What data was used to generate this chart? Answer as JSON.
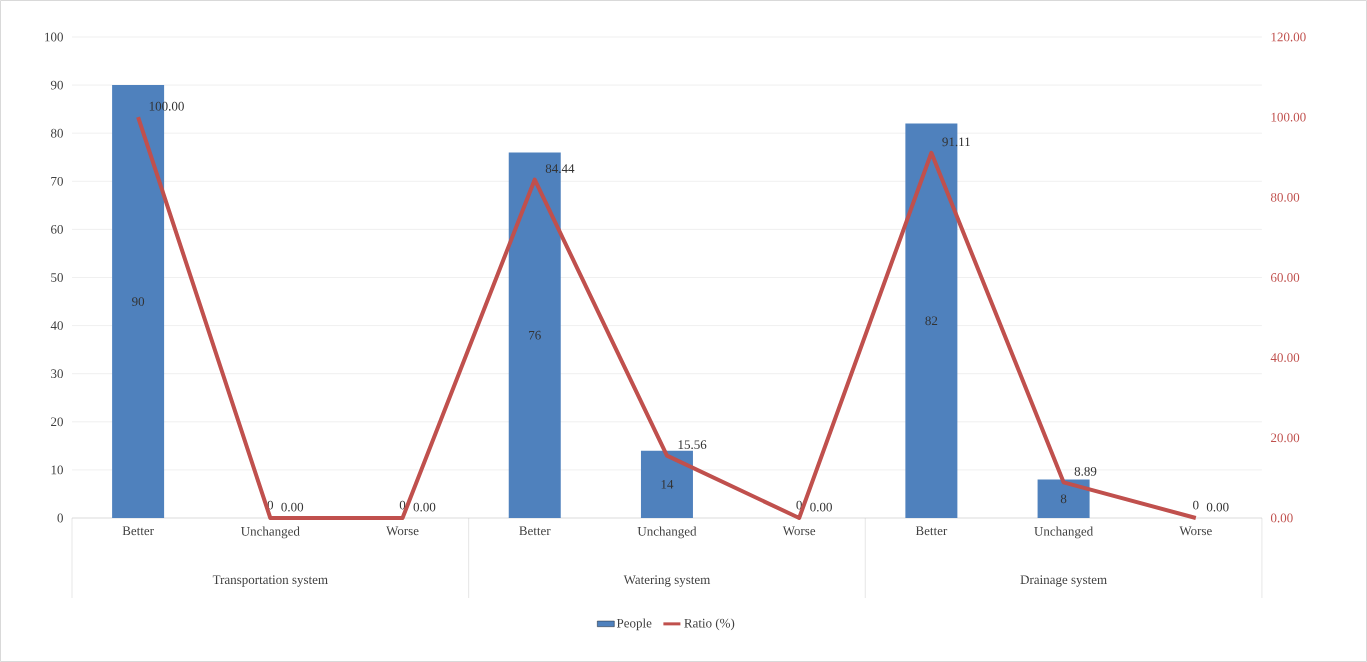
{
  "chart_data": {
    "type": "bar",
    "categories": [
      "Better",
      "Unchanged",
      "Worse",
      "Better",
      "Unchanged",
      "Worse",
      "Better",
      "Unchanged",
      "Worse"
    ],
    "annotations": [
      "Transportation system",
      "Watering system",
      "Drainage system"
    ],
    "series": [
      {
        "name": "People",
        "color": "#4f81bd",
        "values": [
          90,
          0,
          0,
          76,
          14,
          0,
          82,
          8,
          0
        ],
        "value_labels": [
          "90",
          "0",
          "0",
          "76",
          "14",
          "0",
          "82",
          "8",
          "0"
        ]
      },
      {
        "name": "Ratio (%)",
        "type": "line",
        "axis": "y2",
        "color": "#c0504d",
        "values": [
          100.0,
          0.0,
          0.0,
          84.44,
          15.56,
          0.0,
          91.11,
          8.89,
          0.0
        ],
        "value_labels": [
          "100.00",
          "0.00",
          "0.00",
          "84.44",
          "15.56",
          "0.00",
          "91.11",
          "8.89",
          "0.00"
        ]
      }
    ],
    "ylim": [
      0,
      100
    ],
    "yticks": [
      0,
      10,
      20,
      30,
      40,
      50,
      60,
      70,
      80,
      90,
      100
    ],
    "y2lim": [
      0,
      120
    ],
    "y2ticks": [
      {
        "value": 0,
        "label": "0.00"
      },
      {
        "value": 20,
        "label": "20.00"
      },
      {
        "value": 40,
        "label": "40.00"
      },
      {
        "value": 60,
        "label": "60.00"
      },
      {
        "value": 80,
        "label": "80.00"
      },
      {
        "value": 100,
        "label": "100.00"
      },
      {
        "value": 120,
        "label": "120.00"
      }
    ],
    "grid": "y",
    "legend": "bottom"
  }
}
